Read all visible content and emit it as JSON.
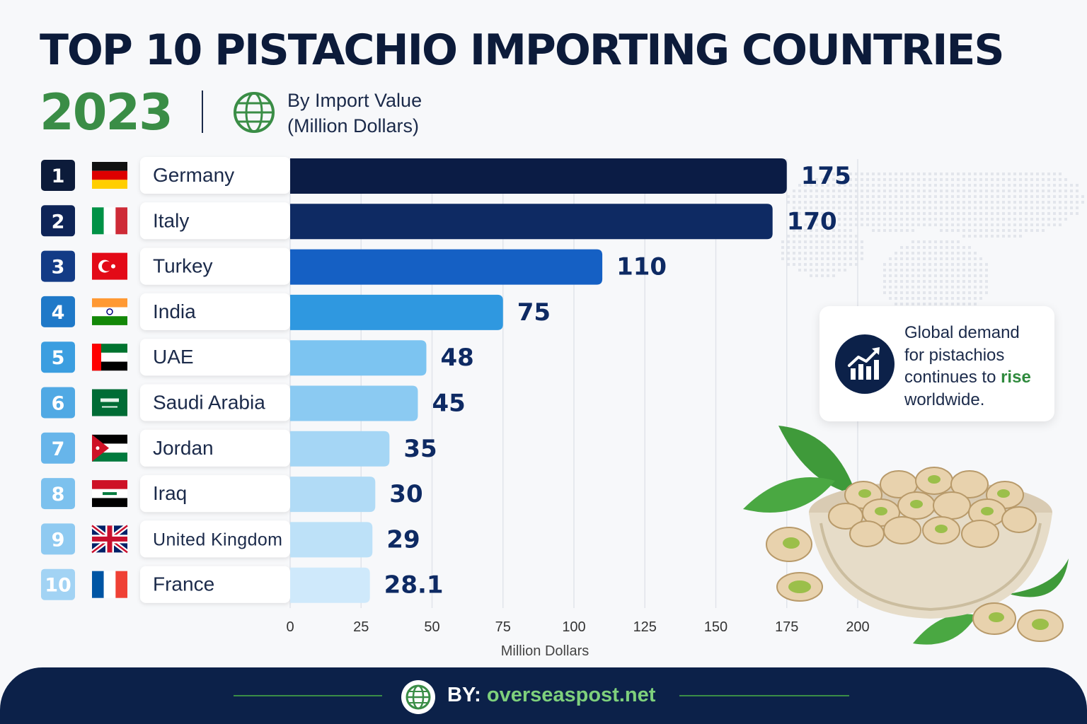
{
  "header": {
    "title": "TOP 10 PISTACHIO IMPORTING COUNTRIES",
    "year": "2023",
    "subtitle_line1": "By Import Value",
    "subtitle_line2": "(Million Dollars)"
  },
  "chart_data": {
    "type": "bar",
    "orientation": "horizontal",
    "categories": [
      "Germany",
      "Italy",
      "Turkey",
      "India",
      "UAE",
      "Saudi Arabia",
      "Jordan",
      "Iraq",
      "United Kingdom",
      "France"
    ],
    "ranks": [
      "1",
      "2",
      "3",
      "4",
      "5",
      "6",
      "7",
      "8",
      "9",
      "10"
    ],
    "values": [
      175,
      170,
      110,
      75,
      48,
      45,
      35,
      30,
      29,
      28.1
    ],
    "value_labels": [
      "175",
      "170",
      "110",
      "75",
      "48",
      "45",
      "35",
      "30",
      "29",
      "28.1"
    ],
    "xlabel": "Million Dollars",
    "xlim": [
      0,
      200
    ],
    "xticks": [
      "0",
      "25",
      "50",
      "75",
      "100",
      "125",
      "150",
      "175",
      "200"
    ],
    "grid": "vertical",
    "legend": "none"
  },
  "callout": {
    "line1": "Global demand",
    "line2": "for pistachios",
    "line3_pre": "continues to ",
    "line3_highlight": "rise",
    "line4": "worldwide."
  },
  "footer": {
    "by_label": "BY:",
    "site": "overseaspost.net"
  },
  "colors": {
    "title": "#0c1b3a",
    "year": "#3a8d46",
    "footer_bg": "#0c2149",
    "accent_green": "#3a8d46"
  }
}
